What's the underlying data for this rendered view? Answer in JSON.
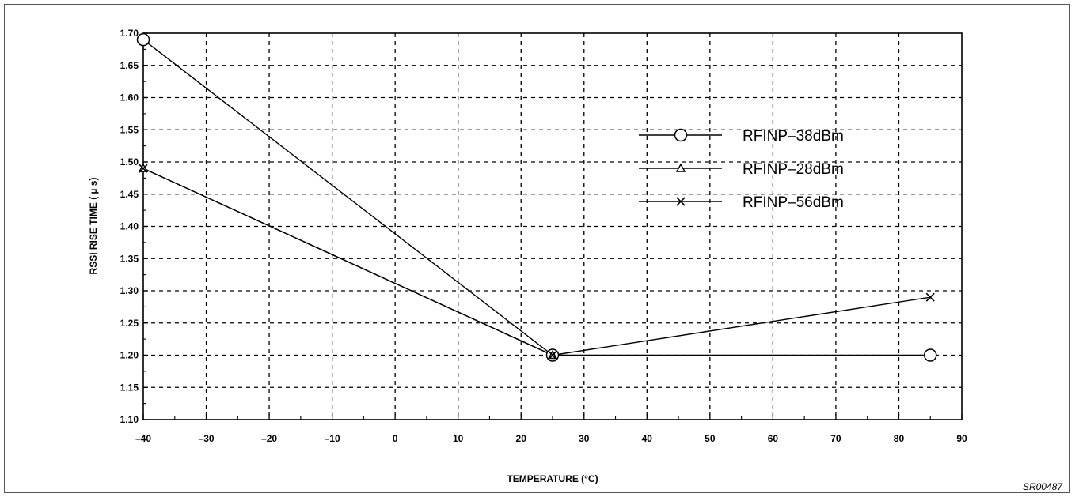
{
  "chart_data": {
    "type": "line",
    "title": "",
    "xlabel": "TEMPERATURE (°C)",
    "ylabel": "RSSI RISE TIME  ( µ s)",
    "xlim": [
      -40,
      90
    ],
    "ylim": [
      1.1,
      1.7
    ],
    "x_ticks": [
      "–40",
      "–30",
      "–20",
      "–10",
      "0",
      "10",
      "20",
      "30",
      "40",
      "50",
      "60",
      "70",
      "80",
      "90"
    ],
    "y_ticks": [
      "1.70",
      "1.65",
      "1.60",
      "1.55",
      "1.50",
      "1.45",
      "1.40",
      "1.35",
      "1.30",
      "1.25",
      "1.20",
      "1.15",
      "1.10"
    ],
    "grid": true,
    "legend_position": "right-middle",
    "series": [
      {
        "name": "RFINP–38dBm",
        "marker": "circle",
        "x": [
          -40,
          25,
          85
        ],
        "y": [
          1.69,
          1.2,
          1.2
        ]
      },
      {
        "name": "RFINP–28dBm",
        "marker": "triangle",
        "x": [
          -40,
          25
        ],
        "y": [
          1.49,
          1.2
        ]
      },
      {
        "name": "RFINP–56dBm",
        "marker": "x",
        "x": [
          -40,
          25,
          85
        ],
        "y": [
          1.49,
          1.2,
          1.29
        ]
      }
    ]
  },
  "figure_id": "SR00487",
  "colors": {
    "ink": "#000000",
    "background": "#ffffff"
  }
}
